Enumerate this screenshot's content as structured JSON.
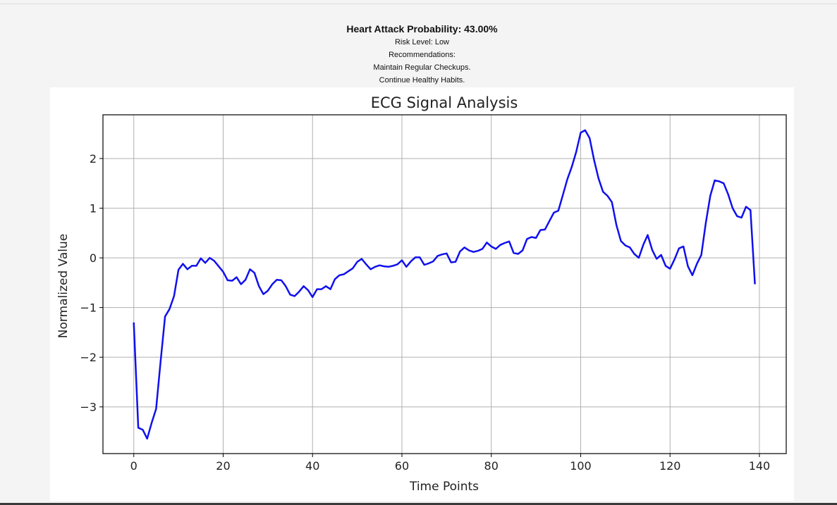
{
  "result": {
    "probability_text": "Heart Attack Probability: 43.00%",
    "risk_level_text": "Risk Level: Low",
    "recommendations_heading": "Recommendations:",
    "recommendations": [
      "Maintain Regular Checkups.",
      "Continue Healthy Habits."
    ]
  },
  "chart_data": {
    "type": "line",
    "title": "ECG Signal Analysis",
    "xlabel": "Time Points",
    "ylabel": "Normalized Value",
    "xlim": [
      -6.9,
      146.0
    ],
    "ylim": [
      -3.94,
      2.88
    ],
    "xticks": [
      0,
      20,
      40,
      60,
      80,
      100,
      120,
      140
    ],
    "yticks": [
      -3,
      -2,
      -1,
      0,
      1,
      2
    ],
    "xtick_labels": [
      "0",
      "20",
      "40",
      "60",
      "80",
      "100",
      "120",
      "140"
    ],
    "ytick_labels": [
      "−3",
      "−2",
      "−1",
      "0",
      "1",
      "2"
    ],
    "grid": true,
    "series": [
      {
        "color": "#1010ee",
        "y": [
          -1.3,
          -3.42,
          -3.46,
          -3.64,
          -3.32,
          -3.04,
          -2.08,
          -1.18,
          -1.03,
          -0.77,
          -0.24,
          -0.12,
          -0.23,
          -0.16,
          -0.16,
          -0.01,
          -0.1,
          0.0,
          -0.06,
          -0.17,
          -0.28,
          -0.45,
          -0.46,
          -0.39,
          -0.53,
          -0.44,
          -0.23,
          -0.3,
          -0.57,
          -0.73,
          -0.66,
          -0.53,
          -0.44,
          -0.45,
          -0.57,
          -0.74,
          -0.77,
          -0.68,
          -0.57,
          -0.65,
          -0.79,
          -0.63,
          -0.63,
          -0.57,
          -0.63,
          -0.43,
          -0.35,
          -0.33,
          -0.27,
          -0.21,
          -0.08,
          -0.02,
          -0.13,
          -0.23,
          -0.18,
          -0.15,
          -0.17,
          -0.18,
          -0.16,
          -0.13,
          -0.05,
          -0.18,
          -0.07,
          0.01,
          0.01,
          -0.14,
          -0.11,
          -0.07,
          0.04,
          0.07,
          0.09,
          -0.09,
          -0.08,
          0.13,
          0.21,
          0.15,
          0.12,
          0.14,
          0.18,
          0.31,
          0.23,
          0.18,
          0.26,
          0.3,
          0.33,
          0.1,
          0.08,
          0.15,
          0.38,
          0.42,
          0.4,
          0.56,
          0.57,
          0.74,
          0.91,
          0.95,
          1.26,
          1.58,
          1.83,
          2.13,
          2.52,
          2.57,
          2.41,
          1.97,
          1.6,
          1.33,
          1.25,
          1.12,
          0.66,
          0.34,
          0.25,
          0.21,
          0.08,
          0.0,
          0.26,
          0.46,
          0.16,
          -0.02,
          0.06,
          -0.16,
          -0.22,
          -0.03,
          0.19,
          0.23,
          -0.17,
          -0.35,
          -0.12,
          0.06,
          0.7,
          1.25,
          1.56,
          1.54,
          1.5,
          1.28,
          1.0,
          0.84,
          0.81,
          1.03,
          0.96,
          -0.53
        ]
      }
    ]
  }
}
